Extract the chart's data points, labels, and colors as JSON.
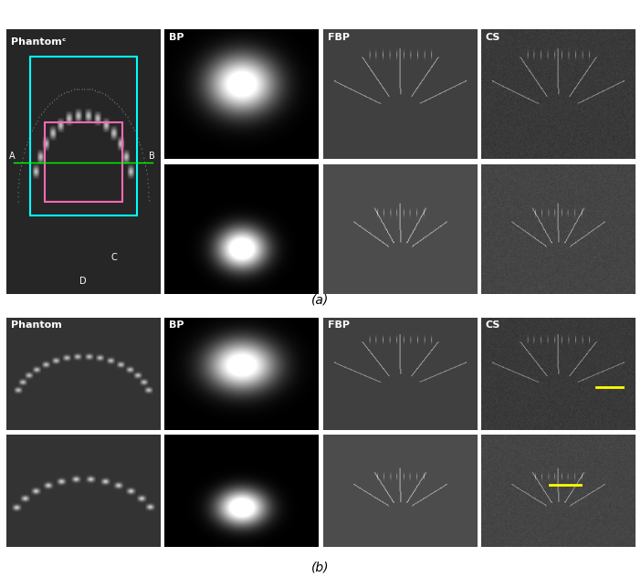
{
  "fig_width": 7.02,
  "fig_height": 6.44,
  "dpi": 100,
  "bg_color": "#ffffff",
  "label_a": "(a)",
  "label_b": "(b)",
  "row_labels_top": [
    "Phantomᶜ",
    "BP",
    "FBP",
    "CS"
  ],
  "row_labels_bottom": [
    "Phantom",
    "BP",
    "FBP",
    "CS"
  ],
  "section_a_ystart": 0.62,
  "section_b_ystart": 0.05
}
